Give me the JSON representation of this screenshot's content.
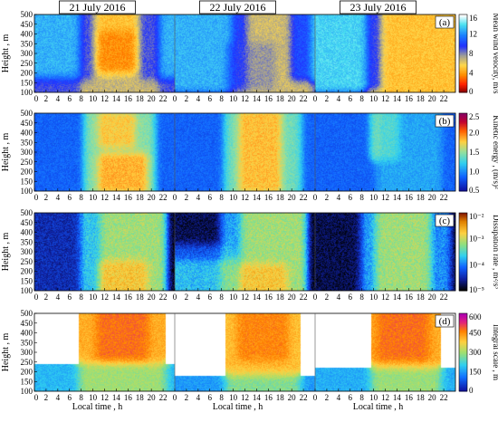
{
  "chart_data": {
    "type": "heatmap",
    "date_labels": [
      "21 July 2016",
      "22 July 2016",
      "23 July 2016"
    ],
    "x_ticks": [
      "0",
      "2",
      "4",
      "6",
      "8",
      "10",
      "12",
      "14",
      "16",
      "18",
      "20",
      "22"
    ],
    "xlabel": "Local time , h",
    "panels": [
      {
        "id": "a",
        "tag": "(a)",
        "ylabel": "Height , m",
        "y_ticks": [
          "100",
          "150",
          "200",
          "250",
          "300",
          "350",
          "400",
          "450",
          "500"
        ],
        "colorbar_label": "Mean wind velocity, m/s",
        "colorbar_ticks": [
          "0",
          "4",
          "8",
          "12",
          "16"
        ],
        "scale": "linear",
        "vmin": 0,
        "vmax": 16,
        "base_value": 9,
        "colormap": [
          [
            0,
            "#8b0000"
          ],
          [
            0.1,
            "#ff2000"
          ],
          [
            0.22,
            "#ff8c00"
          ],
          [
            0.35,
            "#ffd84a"
          ],
          [
            0.48,
            "#9a9a9a"
          ],
          [
            0.6,
            "#2030ff"
          ],
          [
            0.74,
            "#1a80ff"
          ],
          [
            0.88,
            "#4ae0f0"
          ],
          [
            1,
            "#ffffff"
          ]
        ],
        "features": [
          {
            "day": 0,
            "t0": 9,
            "t1": 20,
            "z0": 100,
            "z1": 500,
            "v": 4
          },
          {
            "day": 0,
            "t0": 12,
            "t1": 16,
            "z0": 250,
            "z1": 380,
            "v": 2
          },
          {
            "day": 0,
            "t0": 0,
            "t1": 9,
            "z0": 200,
            "z1": 500,
            "v": 14
          },
          {
            "day": 0,
            "t0": 19,
            "t1": 24,
            "z0": 200,
            "z1": 500,
            "v": 14
          },
          {
            "day": 0,
            "t0": 0,
            "t1": 24,
            "z0": 100,
            "z1": 150,
            "v": 9
          },
          {
            "day": 1,
            "t0": 0,
            "t1": 11,
            "z0": 150,
            "z1": 500,
            "v": 14
          },
          {
            "day": 1,
            "t0": 11,
            "t1": 22,
            "z0": 100,
            "z1": 500,
            "v": 6
          },
          {
            "day": 1,
            "t0": 10,
            "t1": 16,
            "z0": 150,
            "z1": 320,
            "v": 9
          },
          {
            "day": 1,
            "t0": 21,
            "t1": 24,
            "z0": 200,
            "z1": 500,
            "v": 15
          },
          {
            "day": 2,
            "t0": 0,
            "t1": 10,
            "z0": 150,
            "z1": 500,
            "v": 15
          },
          {
            "day": 2,
            "t0": 10,
            "t1": 24,
            "z0": 100,
            "z1": 500,
            "v": 4
          },
          {
            "day": 2,
            "t0": 14,
            "t1": 22,
            "z0": 120,
            "z1": 300,
            "v": 5
          }
        ]
      },
      {
        "id": "b",
        "tag": "(b)",
        "ylabel": "Height , m",
        "y_ticks": [
          "100",
          "150",
          "200",
          "250",
          "300",
          "350",
          "400",
          "450",
          "500"
        ],
        "colorbar_label": "Kinetic energy , (m/s)²",
        "colorbar_ticks": [
          "0.5",
          "1.0",
          "1.5",
          "2.0",
          "2.5"
        ],
        "scale": "linear",
        "vmin": 0.1,
        "vmax": 2.6,
        "base_value": 0.55,
        "colormap": [
          [
            0,
            "#1010a0"
          ],
          [
            0.18,
            "#1060ff"
          ],
          [
            0.36,
            "#30d0f0"
          ],
          [
            0.5,
            "#90e0a0"
          ],
          [
            0.64,
            "#ffd040"
          ],
          [
            0.78,
            "#ff6000"
          ],
          [
            0.9,
            "#c00030"
          ],
          [
            1,
            "#8b0060"
          ]
        ],
        "features": [
          {
            "day": 0,
            "t0": 10,
            "t1": 19,
            "z0": 100,
            "z1": 500,
            "v": 1.5
          },
          {
            "day": 0,
            "t0": 12,
            "t1": 18,
            "z0": 130,
            "z1": 260,
            "v": 2.4
          },
          {
            "day": 0,
            "t0": 12,
            "t1": 16,
            "z0": 360,
            "z1": 470,
            "v": 2.2
          },
          {
            "day": 1,
            "t0": 10,
            "t1": 20,
            "z0": 100,
            "z1": 500,
            "v": 1.4
          },
          {
            "day": 1,
            "t0": 12,
            "t1": 17,
            "z0": 130,
            "z1": 480,
            "v": 2.4
          },
          {
            "day": 2,
            "t0": 11,
            "t1": 13,
            "z0": 300,
            "z1": 480,
            "v": 1.5
          },
          {
            "day": 2,
            "t0": 12,
            "t1": 20,
            "z0": 100,
            "z1": 500,
            "v": 0.9
          }
        ]
      },
      {
        "id": "c",
        "tag": "(c)",
        "ylabel": "Height , m",
        "y_ticks": [
          "100",
          "150",
          "200",
          "250",
          "300",
          "350",
          "400",
          "450",
          "500"
        ],
        "colorbar_label": "Dissipation rate , m²/s³",
        "colorbar_ticks": [
          "10⁻⁵",
          "10⁻⁴",
          "10⁻³",
          "10⁻²"
        ],
        "scale": "log",
        "vmin": 5e-06,
        "vmax": 0.02,
        "base_value": 6e-06,
        "colormap": [
          [
            0,
            "#000000"
          ],
          [
            0.15,
            "#1020a0"
          ],
          [
            0.3,
            "#1060ff"
          ],
          [
            0.45,
            "#30d0f0"
          ],
          [
            0.6,
            "#90e080"
          ],
          [
            0.75,
            "#ffd040"
          ],
          [
            0.9,
            "#e08000"
          ],
          [
            1,
            "#8b2000"
          ]
        ],
        "features": [
          {
            "day": 0,
            "t0": 0,
            "t1": 10,
            "z0": 100,
            "z1": 500,
            "v": 3e-05
          },
          {
            "day": 0,
            "t0": 9,
            "t1": 21,
            "z0": 100,
            "z1": 500,
            "v": 0.003
          },
          {
            "day": 0,
            "t0": 12,
            "t1": 18,
            "z0": 100,
            "z1": 220,
            "v": 0.012
          },
          {
            "day": 1,
            "t0": 0,
            "t1": 10,
            "z0": 300,
            "z1": 500,
            "v": 1e-05
          },
          {
            "day": 1,
            "t0": 0,
            "t1": 10,
            "z0": 100,
            "z1": 300,
            "v": 0.0004
          },
          {
            "day": 1,
            "t0": 9,
            "t1": 21,
            "z0": 100,
            "z1": 500,
            "v": 0.003
          },
          {
            "day": 1,
            "t0": 12,
            "t1": 18,
            "z0": 100,
            "z1": 200,
            "v": 0.012
          },
          {
            "day": 2,
            "t0": 0,
            "t1": 9,
            "z0": 100,
            "z1": 500,
            "v": 1e-05
          },
          {
            "day": 2,
            "t0": 9,
            "t1": 22,
            "z0": 100,
            "z1": 500,
            "v": 0.003
          },
          {
            "day": 2,
            "t0": 21,
            "t1": 24,
            "z0": 100,
            "z1": 500,
            "v": 6e-06
          }
        ]
      },
      {
        "id": "d",
        "tag": "(d)",
        "ylabel": "Height , m",
        "y_ticks": [
          "100",
          "150",
          "200",
          "250",
          "300",
          "350",
          "400",
          "450",
          "500"
        ],
        "colorbar_label": "Integral scale , m",
        "colorbar_ticks": [
          "0",
          "150",
          "300",
          "450",
          "600"
        ],
        "scale": "linear",
        "vmin": 0,
        "vmax": 600,
        "base_value": -1,
        "colormap": [
          [
            0,
            "#1010a0"
          ],
          [
            0.18,
            "#1070ff"
          ],
          [
            0.34,
            "#30d0f0"
          ],
          [
            0.5,
            "#a0e070"
          ],
          [
            0.64,
            "#ffd040"
          ],
          [
            0.78,
            "#ff8000"
          ],
          [
            0.9,
            "#e02080"
          ],
          [
            1,
            "#b000b0"
          ]
        ],
        "features": [
          {
            "day": 0,
            "t0": 0,
            "t1": 24,
            "z0": 100,
            "z1": 200,
            "v": 180
          },
          {
            "day": 0,
            "t0": 9,
            "t1": 21,
            "z0": 100,
            "z1": 500,
            "v": 420
          },
          {
            "day": 0,
            "t0": 12,
            "t1": 18,
            "z0": 300,
            "z1": 500,
            "v": 540
          },
          {
            "day": 1,
            "t0": 0,
            "t1": 24,
            "z0": 100,
            "z1": 140,
            "v": 150
          },
          {
            "day": 1,
            "t0": 10,
            "t1": 20,
            "z0": 100,
            "z1": 500,
            "v": 400
          },
          {
            "day": 1,
            "t0": 12,
            "t1": 18,
            "z0": 300,
            "z1": 500,
            "v": 520
          },
          {
            "day": 2,
            "t0": 0,
            "t1": 24,
            "z0": 100,
            "z1": 180,
            "v": 170
          },
          {
            "day": 2,
            "t0": 11,
            "t1": 20,
            "z0": 100,
            "z1": 500,
            "v": 420
          },
          {
            "day": 2,
            "t0": 12,
            "t1": 18,
            "z0": 300,
            "z1": 500,
            "v": 540
          }
        ]
      }
    ]
  }
}
